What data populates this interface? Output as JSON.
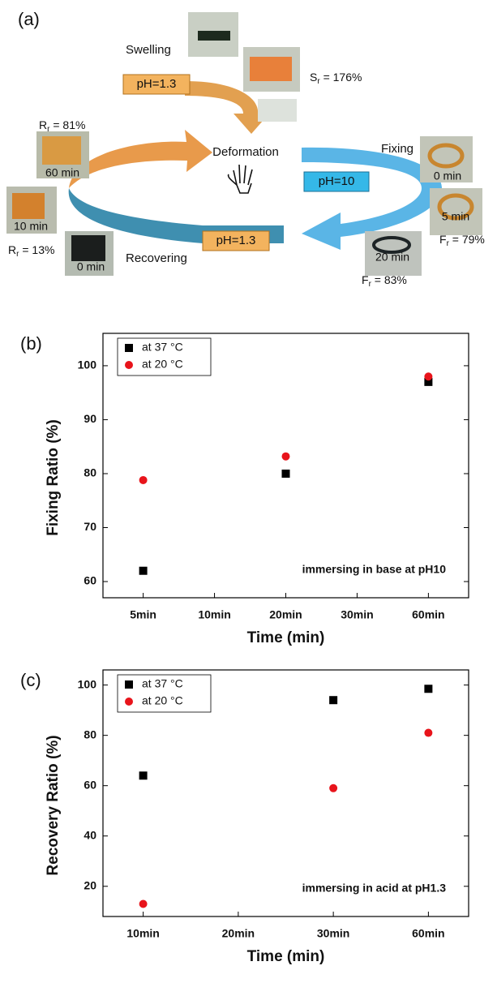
{
  "diagram": {
    "label": "(a)",
    "swelling": "Swelling",
    "swelling_ph": "pH=1.3",
    "swelling_ratio": {
      "main": "S",
      "sub": "r",
      "rest": " = 176%"
    },
    "center": "Deformation",
    "fixing": "Fixing",
    "fixing_ph": "pH=10",
    "fixing_times": [
      "0 min",
      "5 min",
      "20 min"
    ],
    "fixing_ratios": [
      {
        "main": "F",
        "sub": "r",
        "rest": " = 79%"
      },
      {
        "main": "F",
        "sub": "r",
        "rest": " = 83%"
      }
    ],
    "recovering": "Recovering",
    "recovering_ph": "pH=1.3",
    "recovering_times": [
      "0 min",
      "10 min",
      "60 min"
    ],
    "recovering_ratios": [
      {
        "main": "R",
        "sub": "r",
        "rest": " = 13%"
      },
      {
        "main": "R",
        "sub": "r",
        "rest": " = 81%"
      }
    ]
  },
  "chart_data": [
    {
      "type": "scatter",
      "label": "(b)",
      "x_label": "Time (min)",
      "y_label": "Fixing Ratio (%)",
      "annotation": "immersing in base at pH10",
      "legend": "upper left",
      "categories": [
        "5min",
        "10min",
        "20min",
        "30min",
        "60min"
      ],
      "series": [
        {
          "name": "at 37 °C",
          "color": "#000000",
          "marker": "square",
          "values": [
            62,
            null,
            80,
            null,
            97
          ]
        },
        {
          "name": "at 20 °C",
          "color": "#e8141b",
          "marker": "circle",
          "values": [
            78.8,
            null,
            83.2,
            null,
            98
          ]
        }
      ],
      "ylim": [
        57,
        106
      ],
      "yticks": [
        60,
        70,
        80,
        90,
        100
      ]
    },
    {
      "type": "scatter",
      "label": "(c)",
      "x_label": "Time (min)",
      "y_label": "Recovery Ratio (%)",
      "annotation": "immersing in acid at pH1.3",
      "legend": "upper left",
      "categories": [
        "10min",
        "20min",
        "30min",
        "60min"
      ],
      "series": [
        {
          "name": "at 37 °C",
          "color": "#000000",
          "marker": "square",
          "values": [
            64,
            null,
            94,
            98.5
          ]
        },
        {
          "name": "at 20 °C",
          "color": "#e8141b",
          "marker": "circle",
          "values": [
            13,
            null,
            59,
            81
          ]
        }
      ],
      "ylim": [
        8,
        106
      ],
      "yticks": [
        20,
        40,
        60,
        80,
        100
      ]
    }
  ]
}
